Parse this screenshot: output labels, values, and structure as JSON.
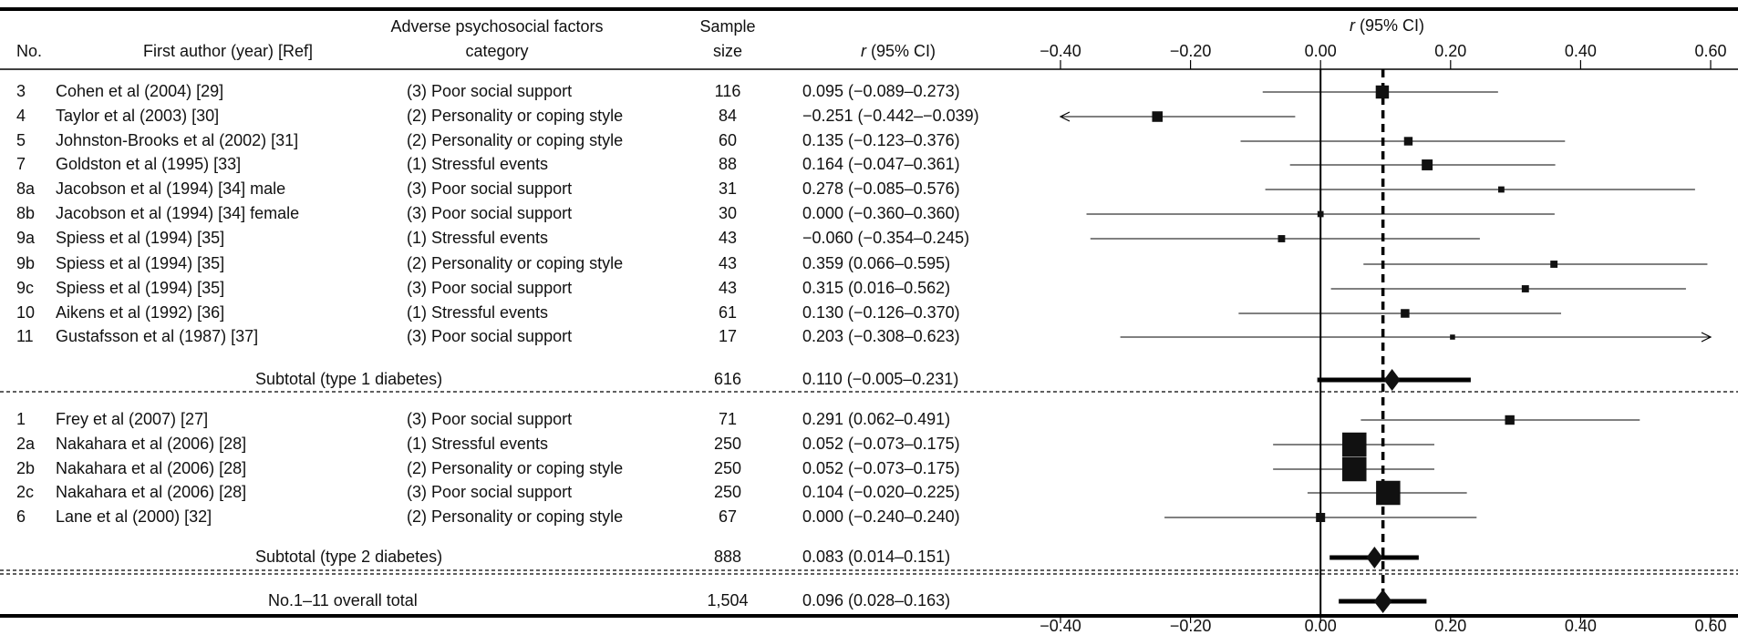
{
  "chart_data": {
    "type": "forest",
    "headers": {
      "no": "No.",
      "author": "First author (year) [Ref]",
      "category": [
        "Adverse psychosocial factors",
        "category"
      ],
      "n": [
        "Sample",
        "size"
      ],
      "ci": [
        "r",
        "(95% CI)"
      ]
    },
    "axis_title": [
      "r",
      "(95% CI)"
    ],
    "xlim": [
      -0.4,
      0.6
    ],
    "xticks": [
      {
        "value": -0.4,
        "label": "−0.40"
      },
      {
        "value": -0.2,
        "label": "−0.20"
      },
      {
        "value": 0,
        "label": "0.00"
      },
      {
        "value": 0.2,
        "label": "0.20"
      },
      {
        "value": 0.4,
        "label": "0.40"
      },
      {
        "value": 0.6,
        "label": "0.60"
      }
    ],
    "groups": [
      {
        "rows": [
          {
            "no": "3",
            "author": "Cohen et al (2004) [29]",
            "category": "(3) Poor social support",
            "n": 116,
            "r": 0.095,
            "lo": -0.089,
            "hi": 0.273,
            "ci_label": "0.095 (−0.089–0.273)"
          },
          {
            "no": "4",
            "author": "Taylor et al (2003) [30]",
            "category": "(2) Personality or coping style",
            "n": 84,
            "r": -0.251,
            "lo": -0.442,
            "hi": -0.039,
            "ci_label": "−0.251 (−0.442–−0.039)"
          },
          {
            "no": "5",
            "author": "Johnston-Brooks et al (2002) [31]",
            "category": "(2) Personality or coping style",
            "n": 60,
            "r": 0.135,
            "lo": -0.123,
            "hi": 0.376,
            "ci_label": "0.135 (−0.123–0.376)"
          },
          {
            "no": "7",
            "author": "Goldston et al (1995) [33]",
            "category": "(1) Stressful events",
            "n": 88,
            "r": 0.164,
            "lo": -0.047,
            "hi": 0.361,
            "ci_label": "0.164 (−0.047–0.361)"
          },
          {
            "no": "8a",
            "author": "Jacobson et al (1994) [34] male",
            "category": "(3) Poor social support",
            "n": 31,
            "r": 0.278,
            "lo": -0.085,
            "hi": 0.576,
            "ci_label": "0.278 (−0.085–0.576)"
          },
          {
            "no": "8b",
            "author": "Jacobson et al (1994) [34] female",
            "category": "(3) Poor social support",
            "n": 30,
            "r": 0,
            "lo": -0.36,
            "hi": 0.36,
            "ci_label": "0.000 (−0.360–0.360)"
          },
          {
            "no": "9a",
            "author": "Spiess et al (1994) [35]",
            "category": "(1) Stressful events",
            "n": 43,
            "r": -0.06,
            "lo": -0.354,
            "hi": 0.245,
            "ci_label": "−0.060 (−0.354–0.245)"
          },
          {
            "no": "9b",
            "author": "Spiess et al (1994) [35]",
            "category": "(2) Personality or coping style",
            "n": 43,
            "r": 0.359,
            "lo": 0.066,
            "hi": 0.595,
            "ci_label": "0.359 (0.066–0.595)"
          },
          {
            "no": "9c",
            "author": "Spiess et al (1994) [35]",
            "category": "(3) Poor social support",
            "n": 43,
            "r": 0.315,
            "lo": 0.016,
            "hi": 0.562,
            "ci_label": "0.315 (0.016–0.562)"
          },
          {
            "no": "10",
            "author": "Aikens et al (1992) [36]",
            "category": "(1) Stressful events",
            "n": 61,
            "r": 0.13,
            "lo": -0.126,
            "hi": 0.37,
            "ci_label": "0.130 (−0.126–0.370)"
          },
          {
            "no": "11",
            "author": "Gustafsson et al (1987) [37]",
            "category": "(3) Poor social support",
            "n": 17,
            "r": 0.203,
            "lo": -0.308,
            "hi": 0.623,
            "ci_label": "0.203 (−0.308–0.623)"
          }
        ],
        "subtotal": {
          "label": "Subtotal (type 1 diabetes)",
          "n": 616,
          "r": 0.11,
          "lo": -0.005,
          "hi": 0.231,
          "ci_label": "0.110 (−0.005–0.231)"
        }
      },
      {
        "rows": [
          {
            "no": "1",
            "author": "Frey et al (2007) [27]",
            "category": "(3) Poor social support",
            "n": 71,
            "r": 0.291,
            "lo": 0.062,
            "hi": 0.491,
            "ci_label": "0.291 (0.062–0.491)"
          },
          {
            "no": "2a",
            "author": "Nakahara et al (2006) [28]",
            "category": "(1) Stressful events",
            "n": 250,
            "r": 0.052,
            "lo": -0.073,
            "hi": 0.175,
            "ci_label": "0.052 (−0.073–0.175)"
          },
          {
            "no": "2b",
            "author": "Nakahara et al (2006) [28]",
            "category": "(2) Personality or coping style",
            "n": 250,
            "r": 0.052,
            "lo": -0.073,
            "hi": 0.175,
            "ci_label": "0.052 (−0.073–0.175)"
          },
          {
            "no": "2c",
            "author": "Nakahara et al (2006) [28]",
            "category": "(3) Poor social support",
            "n": 250,
            "r": 0.104,
            "lo": -0.02,
            "hi": 0.225,
            "ci_label": "0.104 (−0.020–0.225)"
          },
          {
            "no": "6",
            "author": "Lane et al (2000) [32]",
            "category": "(2) Personality or coping style",
            "n": 67,
            "r": 0,
            "lo": -0.24,
            "hi": 0.24,
            "ci_label": "0.000 (−0.240–0.240)"
          }
        ],
        "subtotal": {
          "label": "Subtotal (type 2 diabetes)",
          "n": 888,
          "r": 0.083,
          "lo": 0.014,
          "hi": 0.151,
          "ci_label": "0.083 (0.014–0.151)"
        }
      }
    ],
    "total": {
      "label": "No.1–11 overall total",
      "n": {
        "value": 1504,
        "label": "1,504"
      },
      "r": 0.096,
      "lo": 0.028,
      "hi": 0.163,
      "ci_label": "0.096 (0.028–0.163)"
    }
  }
}
